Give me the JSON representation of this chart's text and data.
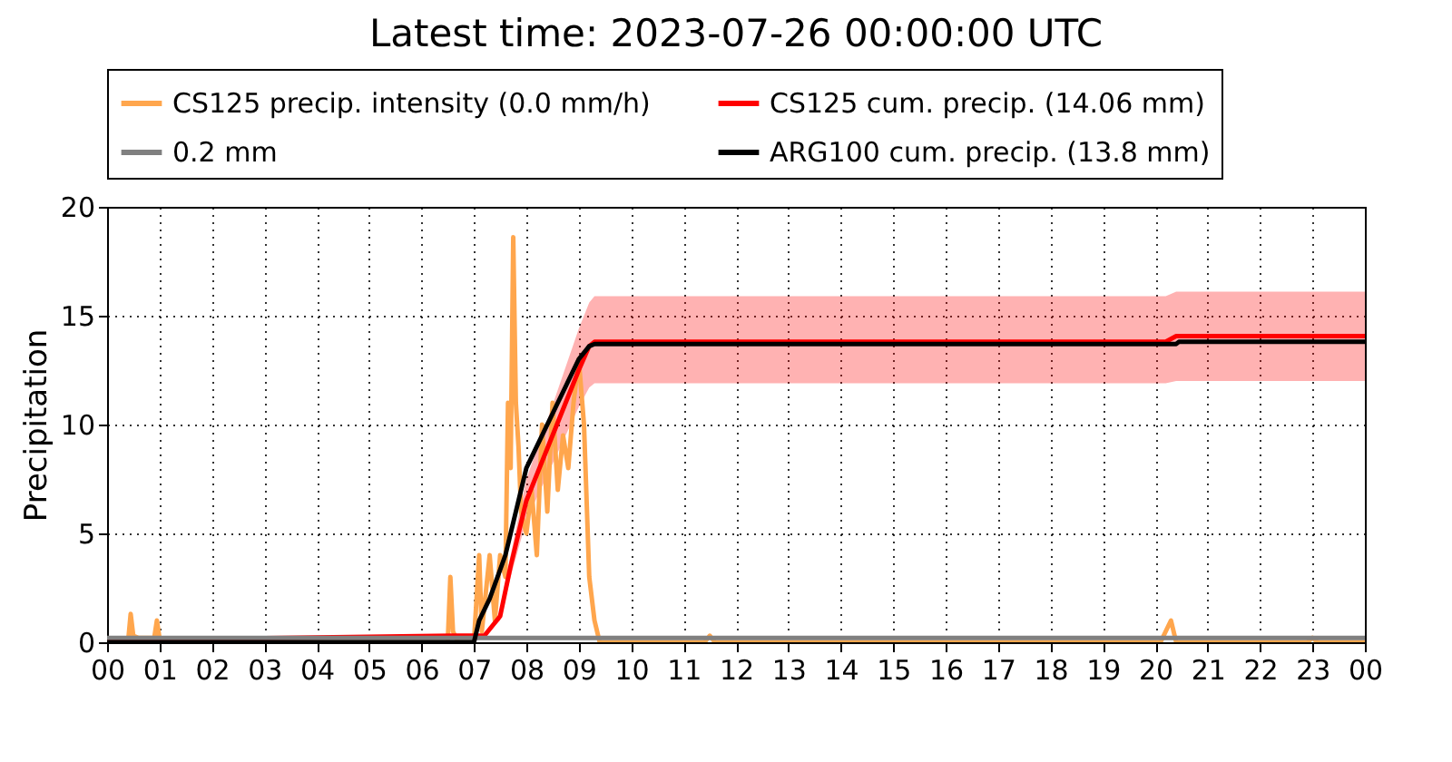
{
  "chart_data": {
    "type": "line",
    "title": "Latest time: 2023-07-26 00:00:00 UTC",
    "ylabel": "Precipitation",
    "xlim": [
      0,
      24
    ],
    "ylim": [
      0,
      20
    ],
    "xticks": [
      {
        "value": 0,
        "label": "00"
      },
      {
        "value": 1,
        "label": "01"
      },
      {
        "value": 2,
        "label": "02"
      },
      {
        "value": 3,
        "label": "03"
      },
      {
        "value": 4,
        "label": "04"
      },
      {
        "value": 5,
        "label": "05"
      },
      {
        "value": 6,
        "label": "06"
      },
      {
        "value": 7,
        "label": "07"
      },
      {
        "value": 8,
        "label": "08"
      },
      {
        "value": 9,
        "label": "09"
      },
      10,
      11,
      12,
      13,
      14,
      15,
      16,
      17,
      18,
      19,
      20,
      21,
      22,
      23,
      {
        "value": 24,
        "label": "00"
      }
    ],
    "yticks": [
      0,
      5,
      10,
      15,
      20
    ],
    "grid": true,
    "legend": "top",
    "marker": "none",
    "line_style": "solid",
    "series": [
      {
        "name": "CS125 precip. intensity (0.0 mm/h)",
        "color": "#ffa64d",
        "x": [
          0,
          0.4,
          0.45,
          0.5,
          0.6,
          0.9,
          0.95,
          1.0,
          1.1,
          6.5,
          6.55,
          6.6,
          6.7,
          7.0,
          7.1,
          7.15,
          7.3,
          7.4,
          7.5,
          7.6,
          7.65,
          7.7,
          7.75,
          7.8,
          7.85,
          7.9,
          8.0,
          8.1,
          8.2,
          8.3,
          8.4,
          8.5,
          8.6,
          8.7,
          8.8,
          8.9,
          9.0,
          9.1,
          9.2,
          9.3,
          9.4,
          11.4,
          11.5,
          11.6,
          20.1,
          20.2,
          20.3,
          20.4,
          22.9,
          23.0,
          23.1,
          24
        ],
        "values": [
          0,
          0,
          1.3,
          0.3,
          0.2,
          0.2,
          1.0,
          0.2,
          0,
          0,
          3.0,
          0.5,
          0,
          0,
          4,
          0.5,
          4,
          1,
          4,
          3,
          11,
          8,
          18.6,
          11,
          9,
          6,
          5,
          7,
          4,
          10,
          6,
          11,
          7,
          9.5,
          8,
          11,
          13,
          10,
          3,
          1,
          0,
          0,
          0.3,
          0,
          0,
          0.5,
          1.0,
          0,
          0,
          0.2,
          0,
          0
        ]
      },
      {
        "name": "CS125 cum. precip. (14.06 mm)",
        "color": "#ff0000",
        "x": [
          0,
          6.6,
          7.0,
          7.2,
          7.5,
          7.7,
          8.0,
          8.5,
          9.0,
          9.2,
          9.3,
          20.2,
          20.4,
          24
        ],
        "values": [
          0.1,
          0.3,
          0.3,
          0.3,
          1.2,
          3.5,
          6.5,
          9.5,
          12.5,
          13.6,
          13.8,
          13.8,
          14.06,
          14.06
        ],
        "lower": [
          0.1,
          0.3,
          0.3,
          0.3,
          1.0,
          3.0,
          5.6,
          8.2,
          10.8,
          11.7,
          11.9,
          11.9,
          12.0,
          12.0
        ],
        "upper": [
          0.1,
          0.3,
          0.3,
          0.3,
          1.4,
          4.0,
          7.5,
          10.9,
          14.4,
          15.6,
          15.9,
          15.9,
          16.1,
          16.1
        ]
      },
      {
        "name": "0.2 mm",
        "color": "#808080",
        "x": [
          0,
          24
        ],
        "values": [
          0.2,
          0.2
        ]
      },
      {
        "name": "ARG100 cum. precip. (13.8 mm)",
        "color": "#000000",
        "x": [
          0,
          7.0,
          7.1,
          7.3,
          7.6,
          7.8,
          8.0,
          8.5,
          9.0,
          9.2,
          9.3,
          20.4,
          20.45,
          24
        ],
        "values": [
          0,
          0,
          1,
          2,
          4,
          6,
          8,
          10.5,
          13,
          13.6,
          13.7,
          13.7,
          13.8,
          13.8
        ]
      }
    ]
  }
}
